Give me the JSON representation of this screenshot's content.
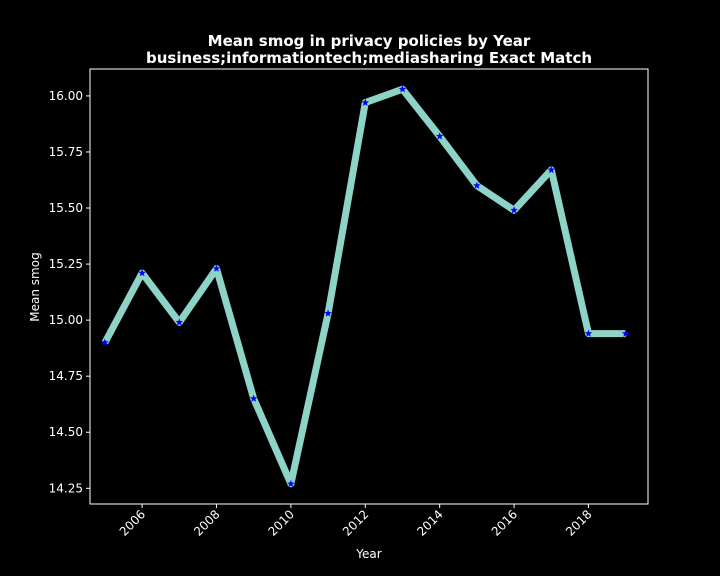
{
  "chart_data": {
    "type": "line",
    "title": "Mean smog in privacy policies by Year",
    "subtitle": "business;informationtech;mediasharing Exact Match",
    "xlabel": "Year",
    "ylabel": "Mean smog",
    "xlim": [
      2004.6,
      2019.6
    ],
    "ylim": [
      14.18,
      16.12
    ],
    "xticks": [
      2006,
      2008,
      2010,
      2012,
      2014,
      2016,
      2018
    ],
    "yticks": [
      14.25,
      14.5,
      14.75,
      15.0,
      15.25,
      15.5,
      15.75,
      16.0
    ],
    "ytick_labels": [
      "14.25",
      "14.50",
      "14.75",
      "15.00",
      "15.25",
      "15.50",
      "15.75",
      "16.00"
    ],
    "grid": false,
    "series": [
      {
        "x": [
          2005,
          2006,
          2007,
          2008,
          2009,
          2010,
          2011,
          2012,
          2013,
          2014,
          2015,
          2016,
          2017,
          2018,
          2019
        ],
        "values": [
          14.9,
          15.21,
          14.99,
          15.23,
          14.65,
          14.27,
          15.03,
          15.97,
          16.03,
          15.82,
          15.6,
          15.49,
          15.67,
          14.94,
          14.94
        ],
        "line_color": "#8dd3c7",
        "marker_color": "#0000ff",
        "marker": "star"
      }
    ]
  }
}
